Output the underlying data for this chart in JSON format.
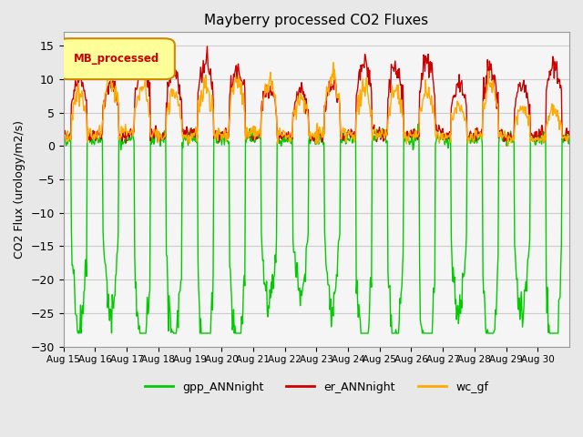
{
  "title": "Mayberry processed CO2 Fluxes",
  "ylabel": "CO2 Flux (urology/m2/s)",
  "xlabel": "",
  "ylim": [
    -30,
    17
  ],
  "yticks": [
    15,
    10,
    5,
    0,
    -5,
    -10,
    -15,
    -20,
    -25,
    -30
  ],
  "xticklabels": [
    "Aug 15",
    "Aug 16",
    "Aug 17",
    "Aug 18",
    "Aug 19",
    "Aug 20",
    "Aug 21",
    "Aug 22",
    "Aug 23",
    "Aug 24",
    "Aug 25",
    "Aug 26",
    "Aug 27",
    "Aug 28",
    "Aug 29",
    "Aug 30"
  ],
  "legend_label": "MB_processed",
  "legend_color_text": "#cc0000",
  "legend_color_bg": "#ffff99",
  "legend_color_border": "#cc8800",
  "series_colors": {
    "gpp_ANNnight": "#00cc00",
    "er_ANNnight": "#cc0000",
    "wc_gf": "#ffaa00"
  },
  "series_labels": [
    "gpp_ANNnight",
    "er_ANNnight",
    "wc_gf"
  ],
  "n_days": 16,
  "n_points_per_day": 48,
  "background_color": "#e8e8e8",
  "plot_bg_color": "#f5f5f5",
  "grid_color": "#cccccc"
}
